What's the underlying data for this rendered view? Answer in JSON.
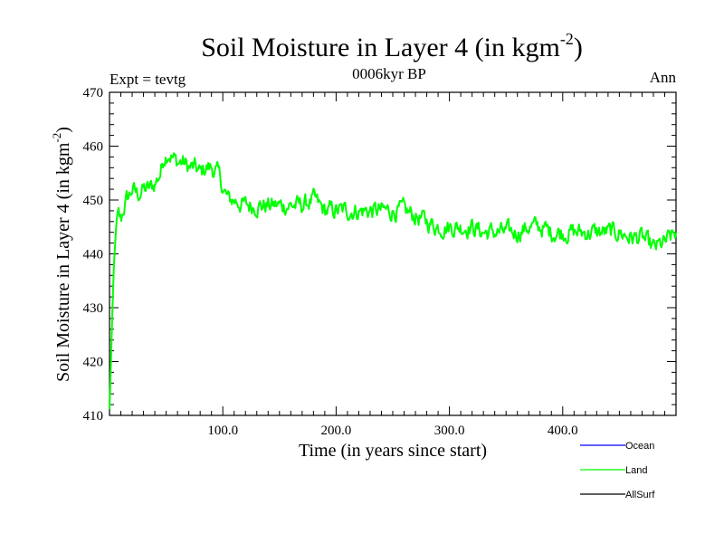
{
  "chart_data": {
    "type": "line",
    "title_main": "Soil Moisture in Layer 4 (in kgm",
    "title_sup": "-2",
    "title_close": ")",
    "subtitle_left": "Expt = tevtg",
    "subtitle_center": "0006kyr BP",
    "subtitle_right": "Ann",
    "xlabel": "Time (in years since start)",
    "ylabel_main": "Soil Moisture in Layer 4 (in kgm",
    "ylabel_sup": "-2",
    "ylabel_close": ")",
    "xlim": [
      0,
      500
    ],
    "ylim": [
      410,
      470
    ],
    "x_ticks": [
      100,
      200,
      300,
      400
    ],
    "x_tick_labels": [
      "100.0",
      "200.0",
      "300.0",
      "400.0"
    ],
    "y_ticks": [
      410,
      420,
      430,
      440,
      450,
      460,
      470
    ],
    "y_tick_labels": [
      "410",
      "420",
      "430",
      "440",
      "450",
      "460",
      "470"
    ],
    "legend": [
      {
        "name": "Ocean",
        "color": "#0000ff"
      },
      {
        "name": "Land",
        "color": "#00ff00"
      },
      {
        "name": "AllSurf",
        "color": "#000000"
      }
    ],
    "series": [
      {
        "name": "Land",
        "color": "#00ff00",
        "anchors": [
          [
            0,
            411
          ],
          [
            1,
            418
          ],
          [
            2,
            425
          ],
          [
            3,
            432
          ],
          [
            4,
            438
          ],
          [
            5,
            442
          ],
          [
            6,
            445
          ],
          [
            8,
            447
          ],
          [
            10,
            446
          ],
          [
            12,
            448
          ],
          [
            15,
            450
          ],
          [
            18,
            451
          ],
          [
            20,
            452
          ],
          [
            25,
            451
          ],
          [
            30,
            452
          ],
          [
            35,
            452
          ],
          [
            40,
            453
          ],
          [
            45,
            455
          ],
          [
            48,
            458
          ],
          [
            52,
            459
          ],
          [
            55,
            458
          ],
          [
            60,
            457
          ],
          [
            65,
            457
          ],
          [
            70,
            456
          ],
          [
            75,
            456
          ],
          [
            80,
            455
          ],
          [
            85,
            456
          ],
          [
            90,
            456
          ],
          [
            95,
            455
          ],
          [
            98,
            454
          ],
          [
            100,
            452
          ],
          [
            105,
            450
          ],
          [
            110,
            450
          ],
          [
            120,
            449
          ],
          [
            130,
            449
          ],
          [
            140,
            449
          ],
          [
            150,
            449
          ],
          [
            160,
            449
          ],
          [
            170,
            449
          ],
          [
            180,
            450
          ],
          [
            190,
            448
          ],
          [
            200,
            448
          ],
          [
            210,
            448
          ],
          [
            220,
            448
          ],
          [
            230,
            448
          ],
          [
            240,
            448
          ],
          [
            250,
            448
          ],
          [
            260,
            448
          ],
          [
            270,
            447
          ],
          [
            280,
            446
          ],
          [
            290,
            445
          ],
          [
            300,
            445
          ],
          [
            310,
            445
          ],
          [
            320,
            445
          ],
          [
            330,
            444
          ],
          [
            340,
            444
          ],
          [
            350,
            444
          ],
          [
            360,
            444
          ],
          [
            370,
            445
          ],
          [
            380,
            445
          ],
          [
            390,
            444
          ],
          [
            400,
            444
          ],
          [
            410,
            444
          ],
          [
            420,
            444
          ],
          [
            430,
            444
          ],
          [
            440,
            444
          ],
          [
            450,
            444
          ],
          [
            460,
            443
          ],
          [
            470,
            443
          ],
          [
            480,
            441
          ],
          [
            490,
            442
          ],
          [
            500,
            444
          ]
        ],
        "noise_amplitude": 1.8,
        "step": 0.8
      }
    ]
  }
}
